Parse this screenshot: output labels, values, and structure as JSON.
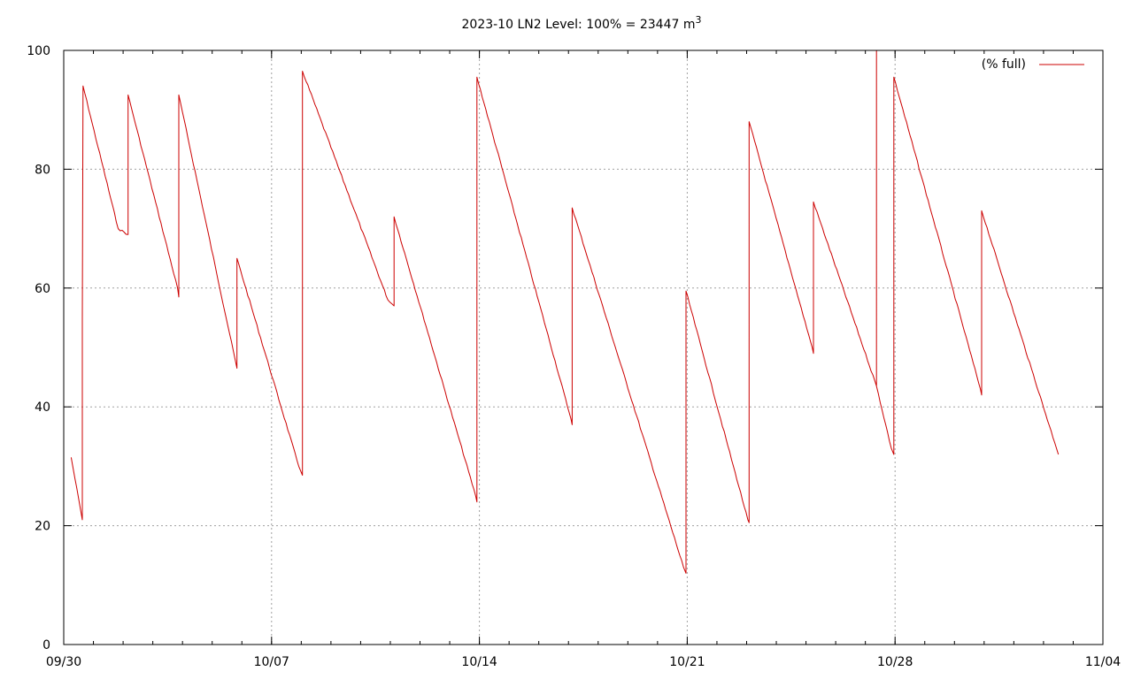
{
  "chart_data": {
    "type": "line",
    "title": "2023-10 LN2 Level: 100% = 23447 m",
    "title_superscript": "3",
    "xlabel": "",
    "ylabel": "",
    "x_ticks": [
      "09/30",
      "10/07",
      "10/14",
      "10/21",
      "10/28",
      "11/04"
    ],
    "y_ticks": [
      "0",
      "20",
      "40",
      "60",
      "80",
      "100"
    ],
    "xlim": [
      "2023-09-30",
      "2023-11-04"
    ],
    "ylim": [
      0,
      100
    ],
    "grid": true,
    "legend_position": "top-right",
    "series": [
      {
        "name": "(% full)",
        "color": "#cc0000",
        "points": [
          [
            "2023-09-30 06:00",
            31.5
          ],
          [
            "2023-09-30 15:00",
            21
          ],
          [
            "2023-09-30 15:00",
            55
          ],
          [
            "2023-09-30 15:36",
            94
          ],
          [
            "2023-10-01 20:00",
            70
          ],
          [
            "2023-10-02 04:00",
            69
          ],
          [
            "2023-10-02 04:00",
            92.5
          ],
          [
            "2023-10-03 20:00",
            60
          ],
          [
            "2023-10-03 21:00",
            58.5
          ],
          [
            "2023-10-03 21:00",
            92.5
          ],
          [
            "2023-10-05 20:00",
            46.5
          ],
          [
            "2023-10-05 20:00",
            65
          ],
          [
            "2023-10-07 22:00",
            30
          ],
          [
            "2023-10-08 01:00",
            28.5
          ],
          [
            "2023-10-08 01:00",
            40
          ],
          [
            "2023-10-08 01:00",
            96.5
          ],
          [
            "2023-10-10 22:00",
            58
          ],
          [
            "2023-10-11 03:00",
            57
          ],
          [
            "2023-10-11 03:00",
            72
          ],
          [
            "2023-10-13 21:00",
            25
          ],
          [
            "2023-10-13 22:00",
            24
          ],
          [
            "2023-10-13 22:00",
            67
          ],
          [
            "2023-10-13 22:00",
            95.5
          ],
          [
            "2023-10-17 02:00",
            38
          ],
          [
            "2023-10-17 03:00",
            37
          ],
          [
            "2023-10-17 03:00",
            42.5
          ],
          [
            "2023-10-17 03:00",
            73.5
          ],
          [
            "2023-10-20 21:00",
            13
          ],
          [
            "2023-10-20 23:00",
            12
          ],
          [
            "2023-10-20 23:00",
            59.5
          ],
          [
            "2023-10-23 01:00",
            21
          ],
          [
            "2023-10-23 02:00",
            20.5
          ],
          [
            "2023-10-23 02:00",
            27
          ],
          [
            "2023-10-23 02:00",
            88
          ],
          [
            "2023-10-25 05:00",
            50
          ],
          [
            "2023-10-25 06:00",
            49
          ],
          [
            "2023-10-25 06:00",
            74.5
          ],
          [
            "2023-10-27 09:00",
            43.5
          ],
          [
            "2023-10-27 09:00",
            100
          ],
          [
            "2023-10-27 09:00",
            43.5
          ],
          [
            "2023-10-27 21:00",
            33
          ],
          [
            "2023-10-27 23:00",
            32
          ],
          [
            "2023-10-27 23:00",
            95.5
          ],
          [
            "2023-10-30 21:00",
            43
          ],
          [
            "2023-10-30 22:00",
            42
          ],
          [
            "2023-10-30 22:00",
            73
          ],
          [
            "2023-11-02 09:00",
            34
          ],
          [
            "2023-11-02 12:00",
            32
          ]
        ]
      }
    ]
  }
}
